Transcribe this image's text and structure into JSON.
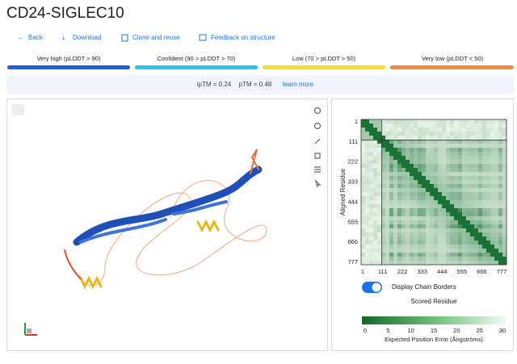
{
  "header": {
    "title": "CD24-SIGLEC10"
  },
  "toolbar": {
    "buttons": [
      "Back",
      "Download",
      "Clone and reuse",
      "Feedback on structure"
    ]
  },
  "plddt_legend": {
    "items": [
      "Very high (pLDDT > 90)",
      "Confident (90 > pLDDT > 70)",
      "Low (70 > pLDDT > 50)",
      "Very low (pLDDT < 50)"
    ]
  },
  "scores": {
    "iptm": "ipTM = 0.24",
    "ptm": "pTM = 0.48",
    "link": "learn more"
  },
  "pae": {
    "axis_ticks": [
      1,
      111,
      222,
      333,
      444,
      555,
      666,
      777
    ],
    "y_label": "Aligned Residue",
    "x_label": "Scored Residue",
    "toggle_label": "Display Chain Borders",
    "colorbar_ticks": [
      0,
      5,
      10,
      15,
      20,
      25,
      30
    ],
    "colorbar_label": "Expected Position Error (Ångströms)"
  }
}
